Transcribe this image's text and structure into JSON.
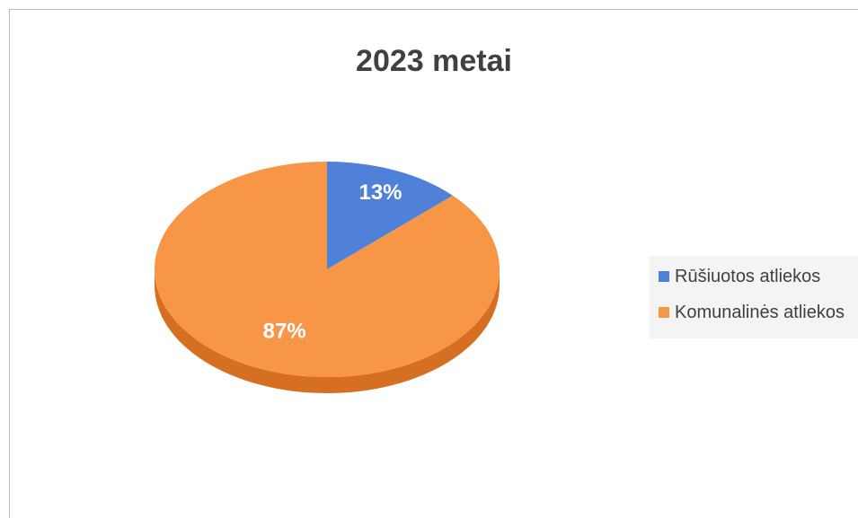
{
  "chart_data": {
    "type": "pie",
    "title": "2023 metai",
    "categories": [
      "Rūšiuotos atliekos",
      "Komunalinės atliekos"
    ],
    "values": [
      13,
      87
    ],
    "data_labels": [
      "13%",
      "87%"
    ],
    "colors": [
      "#4f81d9",
      "#f79646"
    ],
    "side_colors": [
      "#3a66b8",
      "#d66f22"
    ],
    "legend_position": "right"
  }
}
